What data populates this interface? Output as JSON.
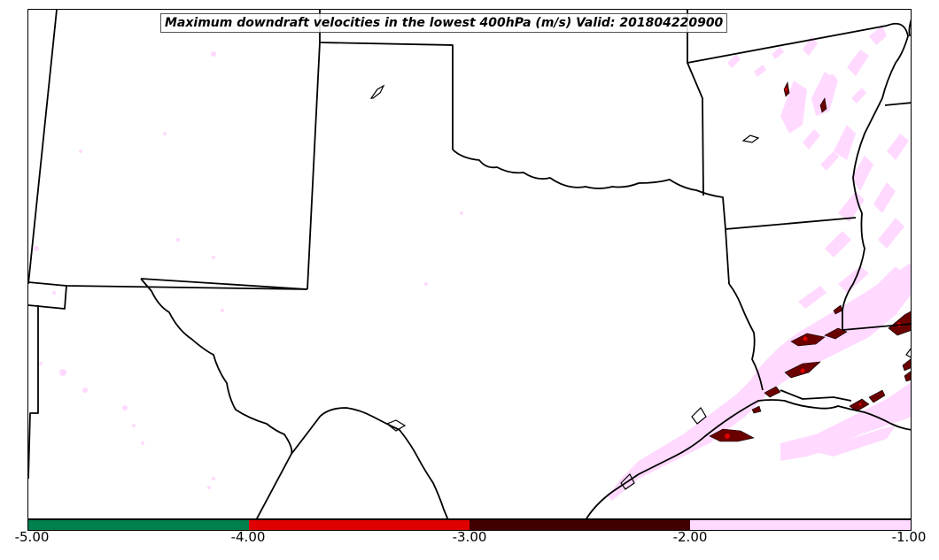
{
  "title": "Maximum downdraft velocities in the lowest 400hPa (m/s) Valid: 201804220900",
  "colorbar": {
    "ticks": [
      "-5.00",
      "-4.00",
      "-3.00",
      "-2.00",
      "-1.00"
    ],
    "segments": [
      {
        "range": "-5 to -4",
        "color": "#00804d"
      },
      {
        "range": "-4 to -3",
        "color": "#e00000"
      },
      {
        "range": "-3 to -2",
        "color": "#400000"
      },
      {
        "range": "-2 to -1",
        "color": "#ffd9ff"
      }
    ]
  },
  "colors": {
    "light_pink": "#ffd9ff",
    "dark_red": "#6a0000",
    "red": "#d40000",
    "boundary": "#000000"
  }
}
